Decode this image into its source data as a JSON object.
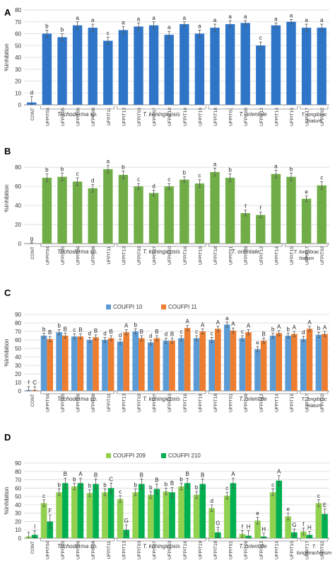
{
  "panel_labels": [
    "A",
    "B",
    "C",
    "D"
  ],
  "colors": {
    "blue": "#2e75c8",
    "green": "#70ad47",
    "light_blue": "#5b9bd5",
    "orange": "#ed7d31",
    "light_green": "#92d050",
    "dark_green": "#00b050"
  },
  "chart_data": [
    {
      "panel": "A",
      "type": "bar",
      "ylabel": "%Inhibition",
      "ylim": [
        0,
        80
      ],
      "yticks": [
        0,
        10,
        20,
        30,
        40,
        50,
        60,
        70,
        80
      ],
      "categories": [
        "CONT",
        "UFPIT04",
        "UFPIT05",
        "UFPIT06",
        "UFPIT08",
        "UFPIT11",
        "UFPIT13",
        "UFPIT03",
        "UFPIT07",
        "UFPIT10",
        "UFPIT16",
        "UFPIT19",
        "UFPIT18",
        "UFPIT01",
        "UFPIT09",
        "UFPIT12",
        "UFPIT14",
        "UFPIT15",
        "UFPIT17",
        "UFPIT02"
      ],
      "groups": [
        {
          "label": "Trichoderma sp.",
          "italic": true,
          "start": 1,
          "end": 5
        },
        {
          "label": "T. koningiopsis",
          "italic": true,
          "start": 6,
          "end": 11
        },
        {
          "label": "T. orientale",
          "italic": true,
          "start": 12,
          "end": 17
        },
        {
          "label": "T. longibrac hiatum",
          "italic": true,
          "start": 18,
          "end": 19
        }
      ],
      "series": [
        {
          "color": "#2e75c8",
          "values": [
            2,
            60,
            57,
            67,
            65,
            54,
            63,
            66,
            67,
            59,
            68,
            60,
            65,
            68,
            69,
            50,
            67,
            70,
            65,
            65
          ],
          "errors": [
            5,
            3,
            3,
            3,
            3,
            3,
            3,
            3,
            3,
            3,
            2,
            3,
            3,
            3,
            2,
            3,
            2,
            2,
            3,
            3
          ],
          "letters": [
            "d",
            "b",
            "b",
            "a",
            "a",
            "c",
            "a",
            "a",
            "a",
            "a",
            "a",
            "a",
            "a",
            "a",
            "a",
            "c",
            "a",
            "a",
            "a",
            "a"
          ]
        }
      ]
    },
    {
      "panel": "B",
      "type": "bar",
      "ylabel": "%Inhibition",
      "ylim": [
        0,
        95
      ],
      "yticks": [
        0,
        20,
        40,
        60,
        80
      ],
      "categories": [
        "CONT",
        "UFPIT04",
        "UFPIT05",
        "UFPIT06",
        "UFPIT08",
        "UFPIT11",
        "UFPIT13",
        "UFPIT03",
        "UFPIT07",
        "UFPIT10",
        "UFPIT16",
        "UFPIT19",
        "UFPIT18",
        "UFPIT01",
        "UFPIT09",
        "UFPIT12",
        "UFPIT14",
        "UFPIT15",
        "UFPIT17",
        "UFPIT02"
      ],
      "groups": [
        {
          "label": "Trichoderma sp.",
          "italic": true,
          "start": 1,
          "end": 5
        },
        {
          "label": "T. koningiopsis",
          "italic": true,
          "start": 6,
          "end": 11
        },
        {
          "label": "T. orientale",
          "italic": true,
          "start": 12,
          "end": 16
        },
        {
          "label": "T. longibrac hiatum",
          "italic": true,
          "start": 17,
          "end": 19
        }
      ],
      "series": [
        {
          "color": "#70ad47",
          "values": [
            0,
            69,
            70,
            65,
            58,
            78,
            72,
            60,
            53,
            60,
            67,
            63,
            75,
            69,
            32,
            30,
            73,
            70,
            47,
            61
          ],
          "errors": [
            1,
            4,
            4,
            4,
            4,
            4,
            4,
            3,
            3,
            3,
            3,
            4,
            4,
            4,
            3,
            3,
            4,
            4,
            3,
            4
          ],
          "letters": [
            "g",
            "b",
            "b",
            "c",
            "d",
            "a",
            "b",
            "c",
            "d",
            "c",
            "b",
            "c",
            "a",
            "b",
            "f",
            "f",
            "a",
            "b",
            "e",
            "c"
          ]
        }
      ]
    },
    {
      "panel": "C",
      "type": "bar",
      "ylabel": "%Inhibition",
      "ylim": [
        0,
        90
      ],
      "yticks": [
        0,
        10,
        20,
        30,
        40,
        50,
        60,
        70,
        80,
        90
      ],
      "legend_position": "top",
      "categories": [
        "CONT",
        "UFPIT04",
        "UFPIT05",
        "UFPIT06",
        "UFPIT08",
        "UFPIT11",
        "UFPIT13",
        "UFPIT03",
        "UFPIT07",
        "UFPIT10",
        "UFPIT16",
        "UFPIT19",
        "UFPIT18",
        "UFPIT01",
        "UFPIT09",
        "UFPIT12",
        "UFPIT14",
        "UFPIT15",
        "UFPIT17",
        "UFPIT02"
      ],
      "groups": [
        {
          "label": "Trichoderma sp.",
          "italic": true,
          "start": 1,
          "end": 5
        },
        {
          "label": "T. koningiopsis",
          "italic": true,
          "start": 6,
          "end": 11
        },
        {
          "label": "T. orientale",
          "italic": true,
          "start": 12,
          "end": 17
        },
        {
          "label": "T. longibrac hiatum",
          "italic": true,
          "start": 18,
          "end": 19
        }
      ],
      "series": [
        {
          "name": "COUFPI 10",
          "color": "#5b9bd5",
          "values": [
            1,
            65,
            69,
            64,
            60,
            60,
            58,
            70,
            57,
            59,
            62,
            62,
            60,
            78,
            62,
            49,
            65,
            65,
            61,
            66
          ],
          "errors": [
            4,
            3,
            3,
            3,
            3,
            3,
            3,
            3,
            3,
            3,
            3,
            3,
            3,
            3,
            3,
            3,
            3,
            3,
            3,
            3
          ],
          "letters": [
            "f",
            "b",
            "b",
            "c",
            "d",
            "d",
            "d",
            "b",
            "d",
            "d",
            "c",
            "c",
            "c",
            "a",
            "c",
            "e",
            "b",
            "b",
            "d",
            "b"
          ]
        },
        {
          "name": "COUFPI 11",
          "color": "#ed7d31",
          "values": [
            1,
            61,
            65,
            64,
            63,
            62,
            69,
            62,
            62,
            59,
            74,
            70,
            73,
            71,
            69,
            59,
            68,
            67,
            73,
            67
          ],
          "errors": [
            4,
            3,
            3,
            3,
            3,
            3,
            3,
            3,
            3,
            3,
            3,
            3,
            3,
            3,
            3,
            3,
            3,
            3,
            3,
            3
          ],
          "letters": [
            "C",
            "B",
            "B",
            "B",
            "B",
            "B",
            "A",
            "B",
            "B",
            "B",
            "A",
            "A",
            "A",
            "A",
            "A",
            "B",
            "A",
            "A",
            "A",
            "A"
          ]
        }
      ]
    },
    {
      "panel": "D",
      "type": "bar",
      "ylabel": "%Inhibition",
      "ylim": [
        0,
        90
      ],
      "yticks": [
        0,
        10,
        20,
        30,
        40,
        50,
        60,
        70,
        80,
        90
      ],
      "legend_position": "top",
      "categories": [
        "CONT",
        "UFPIT04",
        "UFPIT05",
        "UFPIT06",
        "UFPIT08",
        "UFPIT11",
        "UFPIT13",
        "UFPIT03",
        "UFPIT07",
        "UFPIT10",
        "UFPIT16",
        "UFPIT19",
        "UFPIT18",
        "UFPIT01",
        "UFPIT09",
        "UFPIT12",
        "UFPIT14",
        "UFPIT15",
        "UFPIT17",
        "UFPIT02"
      ],
      "groups": [
        {
          "label": "Trichoderma sp.",
          "italic": true,
          "start": 1,
          "end": 5
        },
        {
          "label": "T. koningiopsis",
          "italic": true,
          "start": 6,
          "end": 11
        },
        {
          "label": "T. orientale",
          "italic": true,
          "start": 12,
          "end": 17
        },
        {
          "label": "T. longibrachiatum",
          "italic": true,
          "start": 18,
          "end": 19
        }
      ],
      "series": [
        {
          "name": "COUFPI 209",
          "color": "#92d050",
          "values": [
            2,
            42,
            55,
            62,
            54,
            55,
            47,
            55,
            52,
            56,
            62,
            52,
            36,
            51,
            5,
            21,
            55,
            26,
            8,
            42
          ],
          "errors": [
            5,
            4,
            4,
            4,
            4,
            4,
            4,
            4,
            4,
            4,
            4,
            4,
            4,
            4,
            4,
            4,
            4,
            4,
            4,
            4
          ],
          "letters": [
            "",
            "c",
            "b",
            "b",
            "b",
            "b",
            "c",
            "b",
            "b",
            "b",
            "b",
            "b",
            "d",
            "c",
            "f",
            "e",
            "c",
            "e",
            "f",
            "c"
          ]
        },
        {
          "name": "COUFPI 210",
          "color": "#00b050",
          "values": [
            4,
            20,
            66,
            66,
            65,
            60,
            10,
            65,
            59,
            55,
            66,
            65,
            7,
            66,
            3,
            2,
            69,
            7,
            4,
            29
          ],
          "errors": [
            5,
            8,
            6,
            6,
            6,
            6,
            6,
            6,
            6,
            6,
            6,
            6,
            6,
            6,
            6,
            4,
            6,
            4,
            4,
            6
          ],
          "letters": [
            "I",
            "F",
            "B",
            "A",
            "B",
            "C",
            "G",
            "B",
            "B",
            "B",
            "B",
            "B",
            "G",
            "A",
            "H",
            "H",
            "A",
            "G",
            "H",
            "E"
          ]
        }
      ]
    }
  ]
}
